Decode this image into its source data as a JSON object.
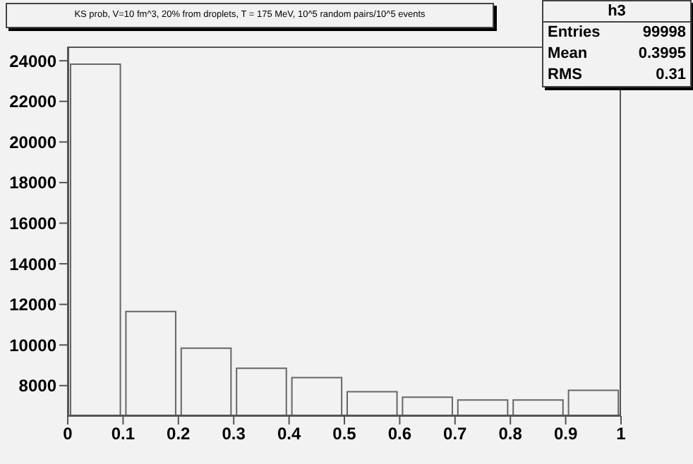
{
  "chart_data": {
    "type": "histogram",
    "title": "KS prob, V=10 fm^3, 20% from droplets, T = 175 MeV, 10^5 random pairs/10^5 events",
    "bins": [
      0,
      0.1,
      0.2,
      0.3,
      0.4,
      0.5,
      0.6,
      0.7,
      0.8,
      0.9,
      1
    ],
    "values": [
      23830,
      11650,
      9840,
      8850,
      8390,
      7700,
      7430,
      7290,
      7290,
      7770
    ],
    "color": "#666666",
    "xlim": [
      0,
      1
    ],
    "xticks": [
      {
        "value": 0,
        "label": "0"
      },
      0.1,
      0.2,
      0.3,
      0.4,
      0.5,
      0.6,
      0.7,
      0.8,
      0.9,
      {
        "value": 1,
        "label": "1"
      }
    ],
    "ylim": [
      6500,
      24700
    ],
    "yticks": [
      8000,
      10000,
      12000,
      14000,
      16000,
      18000,
      20000,
      22000,
      24000
    ],
    "annotations": [
      "h3",
      "Entries",
      "99998",
      "Mean",
      "0.3995",
      "RMS",
      "0.31"
    ]
  }
}
